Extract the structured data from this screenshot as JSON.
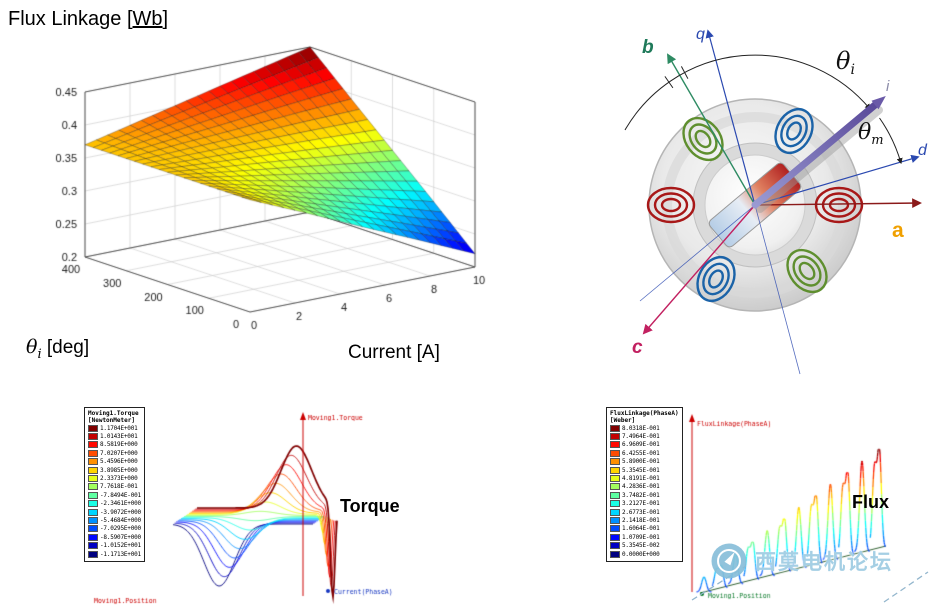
{
  "page": {
    "background": "#ffffff"
  },
  "surface_panel": {
    "title_prefix": "Flux Linkage [",
    "title_unit": "Wb",
    "title_suffix": "]",
    "ylabel_symbol": "θ",
    "ylabel_sub": "i",
    "ylabel_rest": " [deg]",
    "xlabel": "Current [A]"
  },
  "motor_diagram": {
    "labels": {
      "b": "b",
      "q": "q",
      "d": "d",
      "a": "a",
      "c": "c",
      "i": "i",
      "theta_symbol": "θ",
      "theta_i_sub": "i",
      "theta_m_sub": "m"
    },
    "axis_colors": {
      "a": "#f0a000",
      "b": "#1f7a5a",
      "c": "#c22060",
      "d": "#2b49b0",
      "q": "#2b49b0"
    },
    "coil_colors": {
      "phase_a": "#a81818",
      "phase_b": "#5f8f2f",
      "phase_c": "#1b63a8"
    }
  },
  "watermark": {
    "text": "西莫电机论坛"
  },
  "chart_data": [
    {
      "type": "surface",
      "title": "Flux Linkage [Wb]",
      "xlabel": "Current [A]",
      "ylabel": "θi [deg]",
      "zlabel": "Flux Linkage [Wb]",
      "x_current_A": [
        0,
        2.5,
        5,
        7.5,
        10
      ],
      "y_theta_deg": [
        0,
        100,
        200,
        300,
        400
      ],
      "z_flux_Wb": [
        [
          0.37,
          0.333,
          0.295,
          0.258,
          0.22
        ],
        [
          0.37,
          0.347,
          0.324,
          0.301,
          0.278
        ],
        [
          0.37,
          0.361,
          0.353,
          0.344,
          0.335
        ],
        [
          0.37,
          0.376,
          0.381,
          0.387,
          0.392
        ],
        [
          0.37,
          0.39,
          0.41,
          0.43,
          0.45
        ]
      ],
      "xlim": [
        0,
        10
      ],
      "ylim": [
        0,
        400
      ],
      "zlim": [
        0.2,
        0.45
      ],
      "x_ticks": [
        0,
        2,
        4,
        6,
        8,
        10
      ],
      "y_ticks": [
        0,
        100,
        200,
        300,
        400
      ],
      "z_ticks": [
        0.2,
        0.25,
        0.3,
        0.35,
        0.4,
        0.45
      ],
      "colormap": "jet",
      "grid": true
    },
    {
      "type": "line",
      "name": "torque-vs-position-family",
      "legend_title": "Moving1.Torque",
      "legend_unit": "[NewtonMeter]",
      "legend_values": [
        "1.1704E+001",
        "1.0143E+001",
        "8.5819E+000",
        "7.0207E+000",
        "5.4596E+000",
        "3.8985E+000",
        "2.3373E+000",
        "7.7618E-001",
        "-7.8494E-001",
        "-2.3461E+000",
        "-3.9072E+000",
        "-5.4684E+000",
        "-7.0295E+000",
        "-8.5907E+000",
        "-1.0152E+001",
        "-1.1713E+001"
      ],
      "y_axis_label": "Moving1.Torque",
      "x_axis_label": "Moving1.Position",
      "parameter_label": "Current(PhaseA)",
      "annotation": "Torque",
      "legend_position": "left",
      "colormap": "jet"
    },
    {
      "type": "line",
      "name": "flux-linkage-vs-position-family",
      "legend_title": "FluxLinkage(PhaseA)",
      "legend_unit": "[Weber]",
      "legend_values": [
        "8.0318E-001",
        "7.4964E-001",
        "6.9609E-001",
        "6.4255E-001",
        "5.8900E-001",
        "5.3545E-001",
        "4.8191E-001",
        "4.2836E-001",
        "3.7482E-001",
        "3.2127E-001",
        "2.6773E-001",
        "2.1418E-001",
        "1.6064E-001",
        "1.0709E-001",
        "5.3545E-002",
        "0.0000E+000"
      ],
      "y_axis_label": "FluxLinkage(PhaseA)",
      "x_axis_label": "Moving1.Position",
      "annotation": "Flux",
      "legend_position": "left",
      "colormap": "jet"
    }
  ]
}
